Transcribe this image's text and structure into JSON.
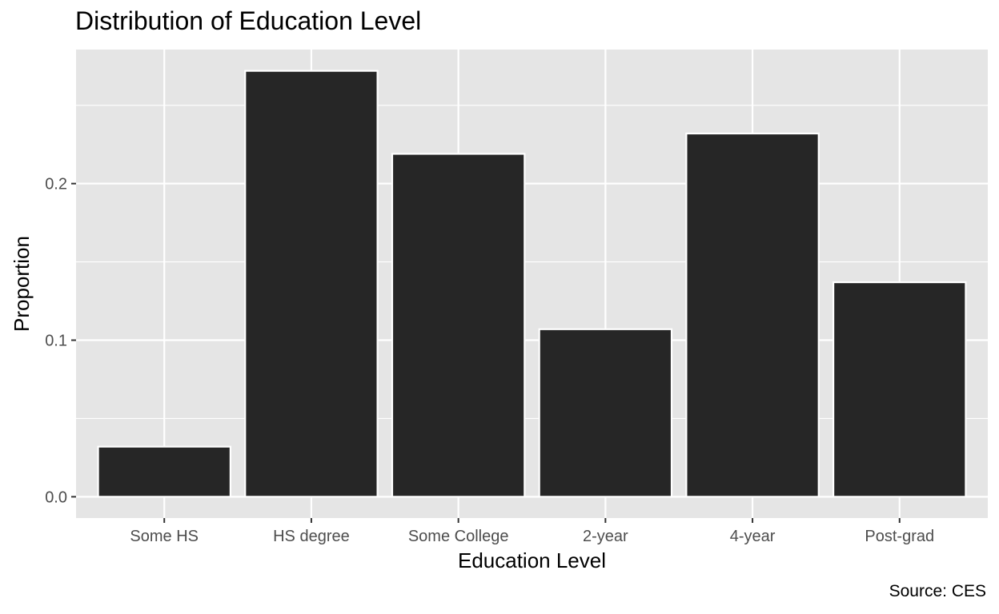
{
  "chart_data": {
    "type": "bar",
    "title": "Distribution of Education Level",
    "xlabel": "Education Level",
    "ylabel": "Proportion",
    "caption": "Source: CES",
    "categories": [
      "Some HS",
      "HS degree",
      "Some College",
      "2-year",
      "4-year",
      "Post-grad"
    ],
    "values": [
      0.032,
      0.272,
      0.219,
      0.107,
      0.232,
      0.137
    ],
    "ylim": [
      -0.0136,
      0.2856
    ],
    "yticks": [
      0.0,
      0.1,
      0.2
    ],
    "ytick_labels": [
      "0.0",
      "0.1",
      "0.2"
    ],
    "grid": true,
    "colors": {
      "panel": "#e5e5e5",
      "grid": "#ffffff",
      "bar_fill": "#262626",
      "bar_outline": "#ffffff",
      "tick_text": "#4d4d4d",
      "tick_mark": "#333333"
    }
  }
}
